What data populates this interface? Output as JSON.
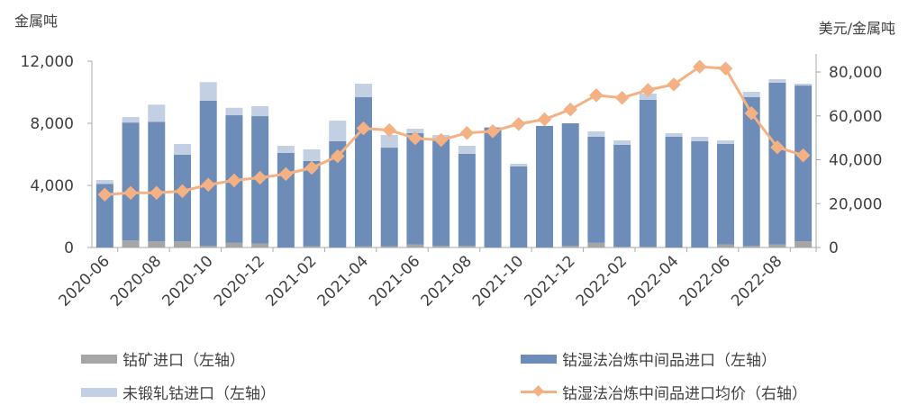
{
  "chart_data": {
    "type": "bar",
    "subtype": "stacked bar with line on secondary axis",
    "y_left_label": "金属吨",
    "y_right_label": "美元/金属吨",
    "y_left_range": [
      0,
      12000
    ],
    "y_left_ticks": [
      "0",
      "4,000",
      "8,000",
      "12,000"
    ],
    "y_right_range": [
      0,
      80000
    ],
    "y_right_ticks": [
      "0",
      "20,000",
      "40,000",
      "60,000",
      "80,000"
    ],
    "x_tick_labels": [
      "2020-06",
      "2020-08",
      "2020-10",
      "2020-12",
      "2021-02",
      "2021-04",
      "2021-06",
      "2021-08",
      "2021-10",
      "2021-12",
      "2022-02",
      "2022-04",
      "2022-06",
      "2022-08"
    ],
    "categories": [
      "2020-06",
      "2020-07",
      "2020-08",
      "2020-09",
      "2020-10",
      "2020-11",
      "2020-12",
      "2021-01",
      "2021-02",
      "2021-03",
      "2021-04",
      "2021-05",
      "2021-06",
      "2021-07",
      "2021-08",
      "2021-09",
      "2021-10",
      "2021-11",
      "2021-12",
      "2022-01",
      "2022-02",
      "2022-03",
      "2022-04",
      "2022-05",
      "2022-06",
      "2022-07",
      "2022-08",
      "2022-09"
    ],
    "grid": false,
    "legend_placement": "bottom",
    "series": [
      {
        "name": "钴矿进口（左轴）",
        "type": "bar",
        "axis": "left",
        "color": "#a5a5a5",
        "values": [
          0,
          450,
          400,
          400,
          100,
          300,
          250,
          0,
          80,
          0,
          80,
          80,
          200,
          100,
          100,
          0,
          0,
          0,
          100,
          300,
          50,
          50,
          0,
          0,
          200,
          100,
          200,
          400
        ]
      },
      {
        "name": "钴湿法冶炼中间品进口（左轴）",
        "type": "bar",
        "axis": "left",
        "color": "#6d8cb8",
        "values": [
          4100,
          7600,
          7700,
          5570,
          9350,
          8220,
          8210,
          6090,
          5490,
          6840,
          9600,
          6350,
          7160,
          6910,
          5930,
          7710,
          5220,
          7830,
          7900,
          6830,
          6560,
          9460,
          7130,
          6840,
          6470,
          9580,
          10410,
          10030
        ]
      },
      {
        "name": "未锻轧钴进口（左轴）",
        "type": "bar",
        "axis": "left",
        "color": "#c3cfe2",
        "values": [
          250,
          350,
          1100,
          700,
          1200,
          480,
          640,
          460,
          750,
          1330,
          870,
          820,
          290,
          240,
          520,
          50,
          170,
          0,
          0,
          350,
          290,
          400,
          230,
          290,
          230,
          350,
          230,
          120
        ]
      },
      {
        "name": "钴湿法冶炼中间品进口均价（右轴）",
        "type": "line",
        "axis": "right",
        "color": "#f4b183",
        "values": [
          24100,
          24900,
          24900,
          25700,
          28600,
          30600,
          31800,
          33500,
          36300,
          41600,
          54300,
          53500,
          49800,
          49000,
          52200,
          53000,
          56300,
          58400,
          62900,
          69400,
          68200,
          71800,
          74300,
          82400,
          81600,
          61200,
          45700,
          42000
        ]
      }
    ]
  }
}
